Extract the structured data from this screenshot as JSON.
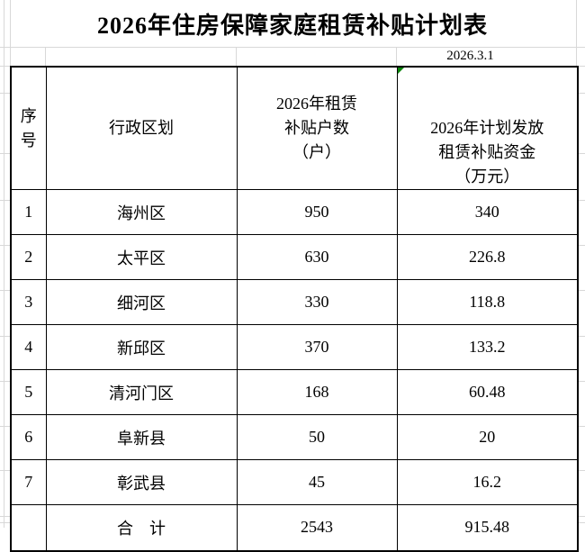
{
  "title": "2026年住房保障家庭租赁补贴计划表",
  "date_note": "2026.3.1",
  "colors": {
    "grid_line": "#d8d8d8",
    "table_border": "#000000",
    "error_indicator_green": "#0a840a",
    "background": "#ffffff"
  },
  "icons": {
    "cell_error_indicator": "green-corner-triangle"
  },
  "table": {
    "headers": {
      "index": "序\n号",
      "region": "行政区划",
      "households": "2026年租赁\n补贴户数\n（户）",
      "funds": "2026年计划发放\n租赁补贴资金\n（万元）"
    },
    "rows": [
      {
        "index": "1",
        "region": "海州区",
        "households": "950",
        "funds": "340"
      },
      {
        "index": "2",
        "region": "太平区",
        "households": "630",
        "funds": "226.8"
      },
      {
        "index": "3",
        "region": "细河区",
        "households": "330",
        "funds": "118.8"
      },
      {
        "index": "4",
        "region": "新邱区",
        "households": "370",
        "funds": "133.2"
      },
      {
        "index": "5",
        "region": "清河门区",
        "households": "168",
        "funds": "60.48"
      },
      {
        "index": "6",
        "region": "阜新县",
        "households": "50",
        "funds": "20"
      },
      {
        "index": "7",
        "region": "彰武县",
        "households": "45",
        "funds": "16.2"
      }
    ],
    "total": {
      "index": "",
      "region": "合　计",
      "households": "2543",
      "funds": "915.48"
    }
  }
}
